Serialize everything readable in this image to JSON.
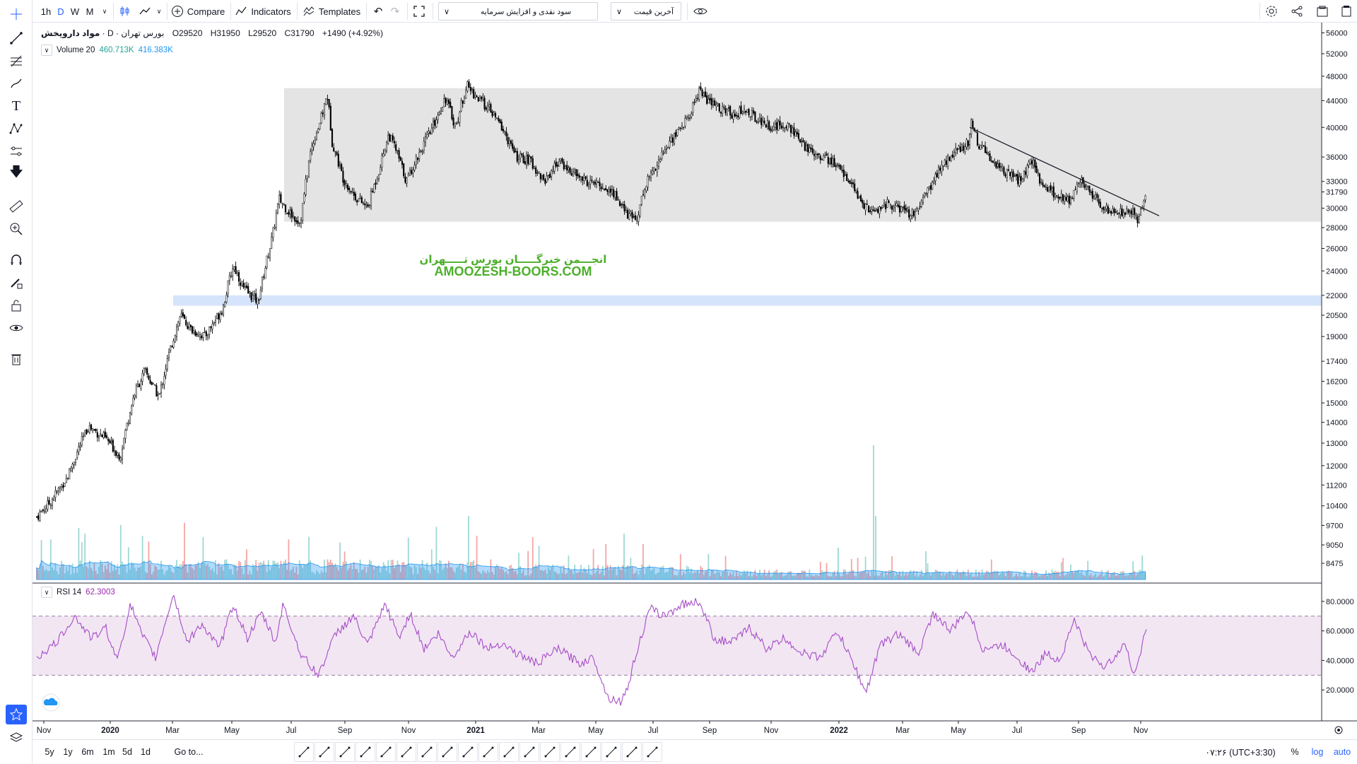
{
  "toolbar": {
    "intervals": [
      "1h",
      "D",
      "W",
      "M"
    ],
    "active_interval": "D",
    "compare_label": "Compare",
    "indicators_label": "Indicators",
    "templates_label": "Templates",
    "dropdown1_text": "سود نقدی و افزایش سرمایه",
    "dropdown2_text": "آخرین قیمت"
  },
  "symbol": {
    "name": "مواد داروپخش",
    "exchange": "بورس تهران",
    "interval": "D",
    "open": "O29520",
    "high": "H31950",
    "low": "L29520",
    "close": "C31790",
    "change": "+1490 (+4.92%)"
  },
  "volume_legend": {
    "label": "Volume 20",
    "value1": "460.713K",
    "value2": "416.383K"
  },
  "rsi_legend": {
    "label": "RSI 14",
    "value": "62.3003"
  },
  "watermark": {
    "line1": "انجـــمن خبرگـــــان بورس تـــــهران",
    "line2": "AMOOZESH-BOORS.COM"
  },
  "price_axis": [
    "56000",
    "52000",
    "48000",
    "44000",
    "40000",
    "36000",
    "33000",
    "30000",
    "28000",
    "26000",
    "24000",
    "22000",
    "20500",
    "19000",
    "17400",
    "16200",
    "15000",
    "14000",
    "13000",
    "12000",
    "11200",
    "10400",
    "9700",
    "9050",
    "8475"
  ],
  "current_price": "31790",
  "rsi_axis": [
    "80.0000",
    "60.0000",
    "40.0000",
    "20.0000"
  ],
  "time_axis": [
    "Nov",
    "2020",
    "Mar",
    "May",
    "Jul",
    "Sep",
    "Nov",
    "2021",
    "Mar",
    "May",
    "Jul",
    "Sep",
    "Nov",
    "2022",
    "Mar",
    "May",
    "Jul",
    "Sep",
    "Nov"
  ],
  "bottom": {
    "ranges": [
      "5y",
      "1y",
      "6m",
      "1m",
      "5d",
      "1d"
    ],
    "goto": "Go to...",
    "time": "۰۷:۲۶ (UTC+3:30)",
    "pct": "%",
    "log": "log",
    "auto": "auto"
  },
  "colors": {
    "up": "#26a69a",
    "down": "#ef5350",
    "candle": "#000000",
    "rsi": "#a64dc7",
    "zone_gray": "#e4e4e4",
    "zone_blue": "#d6e4fb",
    "accent": "#2962ff",
    "watermark": "#4caf2a"
  }
}
